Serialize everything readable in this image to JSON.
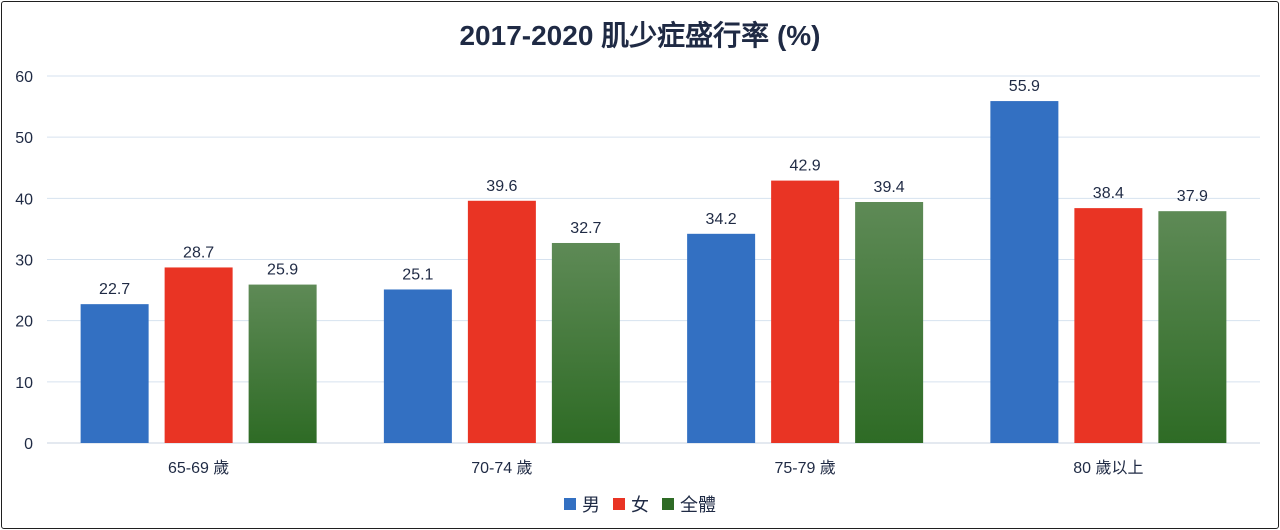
{
  "chart_data": {
    "type": "bar",
    "title": "2017-2020 肌少症盛行率 (%)",
    "xlabel": "",
    "ylabel": "",
    "categories": [
      "65-69 歲",
      "70-74 歲",
      "75-79 歲",
      "80 歲以上"
    ],
    "ylim": [
      0,
      60
    ],
    "yticks": [
      0,
      10,
      20,
      30,
      40,
      50,
      60
    ],
    "grid": true,
    "legend_position": "bottom",
    "series": [
      {
        "name": "男",
        "values": [
          22.7,
          25.1,
          34.2,
          55.9
        ],
        "color": "#3370c2"
      },
      {
        "name": "女",
        "values": [
          28.7,
          39.6,
          42.9,
          38.4
        ],
        "color": "#e93424"
      },
      {
        "name": "全體",
        "values": [
          25.9,
          32.7,
          39.4,
          37.9
        ],
        "color": "#2e6b25",
        "color_top": "#5e8a56"
      }
    ]
  }
}
